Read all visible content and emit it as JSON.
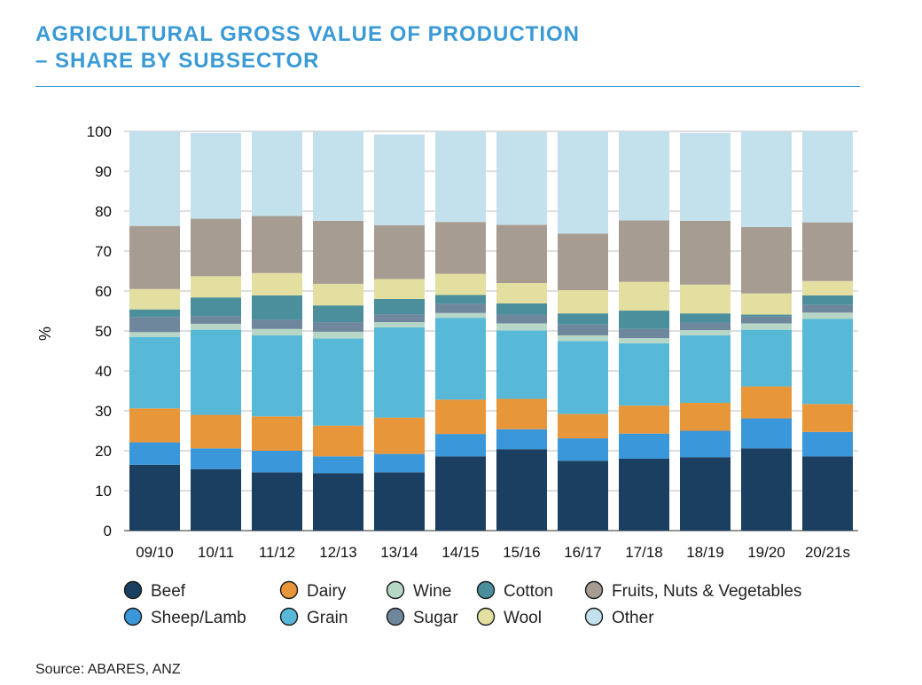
{
  "header": {
    "title_line1": "AGRICULTURAL GROSS VALUE OF PRODUCTION",
    "title_line2": "– SHARE BY SUBSECTOR"
  },
  "footer": {
    "source": "Source: ABARES, ANZ"
  },
  "chart_data": {
    "type": "bar",
    "stacked": true,
    "title": "AGRICULTURAL GROSS VALUE OF PRODUCTION – SHARE BY SUBSECTOR",
    "xlabel": "",
    "ylabel": "%",
    "ylim": [
      0,
      100
    ],
    "yticks": [
      0,
      10,
      20,
      30,
      40,
      50,
      60,
      70,
      80,
      90,
      100
    ],
    "grid": true,
    "legend_position": "bottom",
    "categories": [
      "09/10",
      "10/11",
      "11/12",
      "12/13",
      "13/14",
      "14/15",
      "15/16",
      "16/17",
      "17/18",
      "18/19",
      "19/20",
      "20/21s"
    ],
    "series": [
      {
        "name": "Beef",
        "color": "#1a3f61",
        "values": [
          16.5,
          15.4,
          14.6,
          14.4,
          14.6,
          18.6,
          20.4,
          17.5,
          18.0,
          18.4,
          20.6,
          18.6
        ]
      },
      {
        "name": "Sheep/Lamb",
        "color": "#3a97d9",
        "values": [
          5.6,
          5.2,
          5.4,
          4.2,
          4.6,
          5.6,
          5.0,
          5.6,
          6.3,
          6.6,
          7.5,
          6.1
        ]
      },
      {
        "name": "Dairy",
        "color": "#e8963a",
        "values": [
          8.5,
          8.4,
          8.6,
          7.7,
          9.1,
          8.6,
          7.6,
          6.1,
          7.0,
          7.0,
          8.0,
          7.0
        ]
      },
      {
        "name": "Grain",
        "color": "#57b9d7",
        "values": [
          17.9,
          21.3,
          20.3,
          21.8,
          22.6,
          20.5,
          17.1,
          18.3,
          15.6,
          16.9,
          14.2,
          21.3
        ]
      },
      {
        "name": "Wine",
        "color": "#b7d7c6",
        "values": [
          1.2,
          1.5,
          1.6,
          1.7,
          1.3,
          1.2,
          1.8,
          1.4,
          1.3,
          1.3,
          1.6,
          1.6
        ]
      },
      {
        "name": "Sugar",
        "color": "#6f879c",
        "values": [
          3.8,
          1.9,
          2.3,
          2.4,
          2.0,
          2.3,
          2.2,
          2.7,
          2.3,
          1.9,
          1.7,
          1.9
        ]
      },
      {
        "name": "Cotton",
        "color": "#4c8f9c",
        "values": [
          1.9,
          4.7,
          6.1,
          4.2,
          3.8,
          2.2,
          2.8,
          2.8,
          4.6,
          2.3,
          0.5,
          2.4
        ]
      },
      {
        "name": "Wool",
        "color": "#e3dfa1",
        "values": [
          5.1,
          5.3,
          5.6,
          5.4,
          5.0,
          5.3,
          5.1,
          5.8,
          7.2,
          7.2,
          5.3,
          3.6
        ]
      },
      {
        "name": "Fruits, Nuts & Vegetables",
        "color": "#a79c92",
        "values": [
          15.8,
          14.4,
          14.3,
          15.8,
          13.5,
          13.0,
          14.6,
          14.2,
          15.4,
          16.0,
          16.6,
          14.7
        ]
      },
      {
        "name": "Other",
        "color": "#c3e1ec",
        "values": [
          23.7,
          21.5,
          21.2,
          22.4,
          22.7,
          22.7,
          23.2,
          25.6,
          22.3,
          22.0,
          24.0,
          22.8
        ]
      }
    ],
    "legend_order": [
      "Beef",
      "Dairy",
      "Wine",
      "Cotton",
      "Fruits, Nuts & Vegetables",
      "Sheep/Lamb",
      "Grain",
      "Sugar",
      "Wool",
      "Other"
    ]
  }
}
